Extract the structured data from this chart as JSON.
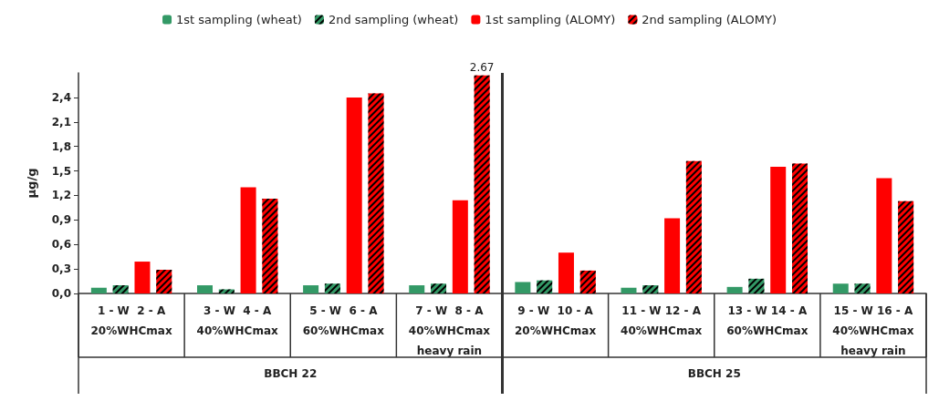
{
  "chart_data": {
    "type": "bar",
    "ylabel": "µg/g",
    "categories": [
      "1 - W  2 - A\n20%WHCmax",
      "3 - W  4 - A\n40%WHCmax",
      "5 - W  6 - A\n60%WHCmax",
      "7 - W  8 - A\n40%WHCmax\nheavy rain",
      "9 - W  10 - A\n20%WHCmax",
      "11 - W 12 - A\n40%WHCmax",
      "13 - W 14 - A\n60%WHCmax",
      "15 - W 16 - A\n40%WHCmax\nheavy rain"
    ],
    "series": [
      {
        "name": "1st sampling (wheat)",
        "color": "#339966",
        "values": [
          0.07,
          0.1,
          0.1,
          0.1,
          0.14,
          0.07,
          0.08,
          0.12
        ]
      },
      {
        "name": "2nd sampling (wheat)",
        "color": "#339966",
        "values": [
          0.1,
          0.05,
          0.12,
          0.12,
          0.16,
          0.1,
          0.18,
          0.12
        ]
      },
      {
        "name": "1st sampling (ALOMY)",
        "color": "#ff0000",
        "values": [
          0.39,
          1.3,
          2.4,
          1.14,
          0.5,
          0.92,
          1.55,
          1.41
        ]
      },
      {
        "name": "2nd sampling (ALOMY)",
        "color": "#ff0000",
        "values": [
          0.29,
          1.16,
          2.45,
          2.67,
          0.28,
          1.62,
          1.59,
          1.13
        ],
        "value_labels": [
          null,
          null,
          null,
          "2.67",
          null,
          null,
          null,
          null
        ]
      }
    ],
    "ylim": [
      0,
      2.7
    ],
    "yticks": [
      {
        "value": 0,
        "label": "0,0"
      },
      {
        "value": 0.3,
        "label": "0,3"
      },
      {
        "value": 0.6,
        "label": "0,6"
      },
      {
        "value": 0.9,
        "label": "0,9"
      },
      {
        "value": 1.2,
        "label": "1,2"
      },
      {
        "value": 1.5,
        "label": "1,5"
      },
      {
        "value": 1.8,
        "label": "1,8"
      },
      {
        "value": 2.1,
        "label": "2,1"
      },
      {
        "value": 2.4,
        "label": "2,4"
      }
    ],
    "annotations": [
      "BBCH 22",
      "BBCH 25"
    ],
    "grid": false,
    "legend": "top"
  }
}
